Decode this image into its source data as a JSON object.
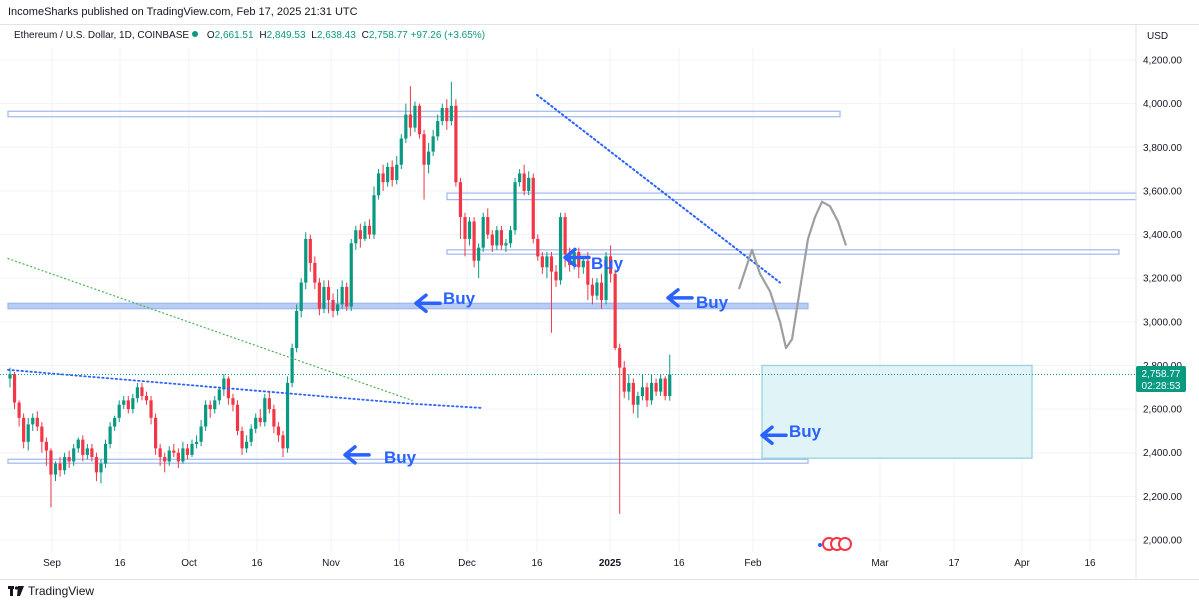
{
  "caption": "IncomeSharks published on TradingView.com, Feb 17, 2025 21:31 UTC",
  "legend": {
    "symbol": "Ethereum / U.S. Dollar, 1D, COINBASE",
    "open_key": "O",
    "open": "2,661.51",
    "high_key": "H",
    "high": "2,849.53",
    "low_key": "L",
    "low": "2,638.43",
    "close_key": "C",
    "close": "2,758.77",
    "change": "+97.26 (+3.65%)"
  },
  "currency": "USD",
  "price_tag": {
    "price": "2,758.77",
    "countdown": "02:28:53"
  },
  "footer": {
    "brand": "TradingView"
  },
  "colors": {
    "up": "#089981",
    "down": "#f23645",
    "annotation_blue": "#2962ff",
    "zone_fill": "#e0f4f7"
  },
  "chart_data": {
    "type": "candlestick",
    "title": "Ethereum / U.S. Dollar, 1D, COINBASE",
    "ylim": [
      1950,
      4250
    ],
    "y_ticks": [
      "4,200.00",
      "4,000.00",
      "3,800.00",
      "3,600.00",
      "3,400.00",
      "3,200.00",
      "3,000.00",
      "2,800.00",
      "2,600.00",
      "2,400.00",
      "2,200.00",
      "2,000.00"
    ],
    "x_ticks": [
      "Sep",
      "16",
      "Oct",
      "16",
      "Nov",
      "16",
      "Dec",
      "16",
      "2025",
      "16",
      "Feb",
      "Mar",
      "17",
      "Apr",
      "16"
    ],
    "grid": true,
    "candles": [
      {
        "o": 2740,
        "c": 2760,
        "h": 2790,
        "l": 2700
      },
      {
        "o": 2760,
        "c": 2630,
        "h": 2770,
        "l": 2600
      },
      {
        "o": 2630,
        "c": 2560,
        "h": 2640,
        "l": 2520
      },
      {
        "o": 2560,
        "c": 2450,
        "h": 2580,
        "l": 2420
      },
      {
        "o": 2450,
        "c": 2530,
        "h": 2560,
        "l": 2410
      },
      {
        "o": 2530,
        "c": 2560,
        "h": 2580,
        "l": 2500
      },
      {
        "o": 2560,
        "c": 2520,
        "h": 2590,
        "l": 2500
      },
      {
        "o": 2520,
        "c": 2450,
        "h": 2540,
        "l": 2400
      },
      {
        "o": 2450,
        "c": 2410,
        "h": 2470,
        "l": 2340
      },
      {
        "o": 2410,
        "c": 2300,
        "h": 2420,
        "l": 2150
      },
      {
        "o": 2300,
        "c": 2350,
        "h": 2360,
        "l": 2270
      },
      {
        "o": 2350,
        "c": 2320,
        "h": 2380,
        "l": 2290
      },
      {
        "o": 2320,
        "c": 2380,
        "h": 2400,
        "l": 2300
      },
      {
        "o": 2380,
        "c": 2360,
        "h": 2410,
        "l": 2330
      },
      {
        "o": 2360,
        "c": 2420,
        "h": 2440,
        "l": 2340
      },
      {
        "o": 2420,
        "c": 2460,
        "h": 2470,
        "l": 2400
      },
      {
        "o": 2460,
        "c": 2390,
        "h": 2480,
        "l": 2360
      },
      {
        "o": 2390,
        "c": 2420,
        "h": 2440,
        "l": 2370
      },
      {
        "o": 2420,
        "c": 2380,
        "h": 2440,
        "l": 2360
      },
      {
        "o": 2380,
        "c": 2310,
        "h": 2400,
        "l": 2270
      },
      {
        "o": 2310,
        "c": 2350,
        "h": 2370,
        "l": 2260
      },
      {
        "o": 2350,
        "c": 2440,
        "h": 2460,
        "l": 2330
      },
      {
        "o": 2440,
        "c": 2520,
        "h": 2540,
        "l": 2420
      },
      {
        "o": 2520,
        "c": 2560,
        "h": 2570,
        "l": 2500
      },
      {
        "o": 2560,
        "c": 2620,
        "h": 2640,
        "l": 2540
      },
      {
        "o": 2620,
        "c": 2640,
        "h": 2660,
        "l": 2600
      },
      {
        "o": 2640,
        "c": 2600,
        "h": 2660,
        "l": 2580
      },
      {
        "o": 2600,
        "c": 2650,
        "h": 2670,
        "l": 2580
      },
      {
        "o": 2650,
        "c": 2700,
        "h": 2720,
        "l": 2630
      },
      {
        "o": 2700,
        "c": 2660,
        "h": 2720,
        "l": 2640
      },
      {
        "o": 2660,
        "c": 2640,
        "h": 2680,
        "l": 2620
      },
      {
        "o": 2640,
        "c": 2560,
        "h": 2660,
        "l": 2530
      },
      {
        "o": 2560,
        "c": 2420,
        "h": 2580,
        "l": 2390
      },
      {
        "o": 2420,
        "c": 2380,
        "h": 2440,
        "l": 2340
      },
      {
        "o": 2380,
        "c": 2360,
        "h": 2400,
        "l": 2310
      },
      {
        "o": 2360,
        "c": 2410,
        "h": 2430,
        "l": 2340
      },
      {
        "o": 2410,
        "c": 2400,
        "h": 2440,
        "l": 2380
      },
      {
        "o": 2400,
        "c": 2360,
        "h": 2420,
        "l": 2330
      },
      {
        "o": 2360,
        "c": 2420,
        "h": 2450,
        "l": 2350
      },
      {
        "o": 2420,
        "c": 2390,
        "h": 2440,
        "l": 2370
      },
      {
        "o": 2390,
        "c": 2440,
        "h": 2460,
        "l": 2380
      },
      {
        "o": 2440,
        "c": 2450,
        "h": 2480,
        "l": 2420
      },
      {
        "o": 2450,
        "c": 2520,
        "h": 2550,
        "l": 2430
      },
      {
        "o": 2520,
        "c": 2620,
        "h": 2640,
        "l": 2500
      },
      {
        "o": 2620,
        "c": 2600,
        "h": 2640,
        "l": 2560
      },
      {
        "o": 2600,
        "c": 2640,
        "h": 2660,
        "l": 2580
      },
      {
        "o": 2640,
        "c": 2690,
        "h": 2700,
        "l": 2620
      },
      {
        "o": 2690,
        "c": 2740,
        "h": 2760,
        "l": 2660
      },
      {
        "o": 2740,
        "c": 2650,
        "h": 2750,
        "l": 2620
      },
      {
        "o": 2650,
        "c": 2620,
        "h": 2670,
        "l": 2590
      },
      {
        "o": 2620,
        "c": 2500,
        "h": 2640,
        "l": 2480
      },
      {
        "o": 2500,
        "c": 2420,
        "h": 2520,
        "l": 2390
      },
      {
        "o": 2420,
        "c": 2450,
        "h": 2480,
        "l": 2400
      },
      {
        "o": 2450,
        "c": 2510,
        "h": 2530,
        "l": 2430
      },
      {
        "o": 2510,
        "c": 2560,
        "h": 2580,
        "l": 2490
      },
      {
        "o": 2560,
        "c": 2540,
        "h": 2600,
        "l": 2520
      },
      {
        "o": 2540,
        "c": 2650,
        "h": 2670,
        "l": 2520
      },
      {
        "o": 2650,
        "c": 2600,
        "h": 2680,
        "l": 2580
      },
      {
        "o": 2600,
        "c": 2520,
        "h": 2620,
        "l": 2490
      },
      {
        "o": 2520,
        "c": 2480,
        "h": 2540,
        "l": 2450
      },
      {
        "o": 2480,
        "c": 2420,
        "h": 2500,
        "l": 2380
      },
      {
        "o": 2420,
        "c": 2720,
        "h": 2750,
        "l": 2400
      },
      {
        "o": 2720,
        "c": 2880,
        "h": 2900,
        "l": 2700
      },
      {
        "o": 2880,
        "c": 3050,
        "h": 3080,
        "l": 2860
      },
      {
        "o": 3050,
        "c": 3180,
        "h": 3200,
        "l": 3020
      },
      {
        "o": 3180,
        "c": 3380,
        "h": 3410,
        "l": 3150
      },
      {
        "o": 3380,
        "c": 3270,
        "h": 3400,
        "l": 3230
      },
      {
        "o": 3270,
        "c": 3180,
        "h": 3300,
        "l": 3150
      },
      {
        "o": 3180,
        "c": 3060,
        "h": 3200,
        "l": 3030
      },
      {
        "o": 3060,
        "c": 3160,
        "h": 3190,
        "l": 3040
      },
      {
        "o": 3160,
        "c": 3100,
        "h": 3190,
        "l": 3040
      },
      {
        "o": 3100,
        "c": 3050,
        "h": 3130,
        "l": 3020
      },
      {
        "o": 3050,
        "c": 3080,
        "h": 3150,
        "l": 3030
      },
      {
        "o": 3080,
        "c": 3160,
        "h": 3190,
        "l": 3060
      },
      {
        "o": 3160,
        "c": 3070,
        "h": 3180,
        "l": 3050
      },
      {
        "o": 3070,
        "c": 3360,
        "h": 3380,
        "l": 3050
      },
      {
        "o": 3360,
        "c": 3420,
        "h": 3440,
        "l": 3330
      },
      {
        "o": 3420,
        "c": 3380,
        "h": 3450,
        "l": 3340
      },
      {
        "o": 3380,
        "c": 3440,
        "h": 3460,
        "l": 3370
      },
      {
        "o": 3440,
        "c": 3400,
        "h": 3470,
        "l": 3380
      },
      {
        "o": 3400,
        "c": 3580,
        "h": 3620,
        "l": 3380
      },
      {
        "o": 3580,
        "c": 3680,
        "h": 3700,
        "l": 3560
      },
      {
        "o": 3680,
        "c": 3640,
        "h": 3720,
        "l": 3600
      },
      {
        "o": 3640,
        "c": 3710,
        "h": 3730,
        "l": 3620
      },
      {
        "o": 3710,
        "c": 3650,
        "h": 3740,
        "l": 3620
      },
      {
        "o": 3650,
        "c": 3720,
        "h": 3760,
        "l": 3630
      },
      {
        "o": 3720,
        "c": 3840,
        "h": 3860,
        "l": 3700
      },
      {
        "o": 3840,
        "c": 3950,
        "h": 4000,
        "l": 3820
      },
      {
        "o": 3950,
        "c": 3890,
        "h": 4080,
        "l": 3850
      },
      {
        "o": 3890,
        "c": 3990,
        "h": 4010,
        "l": 3870
      },
      {
        "o": 3990,
        "c": 3860,
        "h": 4000,
        "l": 3840
      },
      {
        "o": 3860,
        "c": 3720,
        "h": 3880,
        "l": 3560
      },
      {
        "o": 3720,
        "c": 3780,
        "h": 3820,
        "l": 3680
      },
      {
        "o": 3780,
        "c": 3850,
        "h": 3880,
        "l": 3760
      },
      {
        "o": 3850,
        "c": 3920,
        "h": 3950,
        "l": 3830
      },
      {
        "o": 3920,
        "c": 3980,
        "h": 4000,
        "l": 3900
      },
      {
        "o": 3980,
        "c": 3920,
        "h": 4020,
        "l": 3880
      },
      {
        "o": 3920,
        "c": 3990,
        "h": 4100,
        "l": 3900
      },
      {
        "o": 3990,
        "c": 3640,
        "h": 4020,
        "l": 3620
      },
      {
        "o": 3640,
        "c": 3480,
        "h": 3660,
        "l": 3380
      },
      {
        "o": 3480,
        "c": 3380,
        "h": 3500,
        "l": 3300
      },
      {
        "o": 3380,
        "c": 3460,
        "h": 3480,
        "l": 3350
      },
      {
        "o": 3460,
        "c": 3280,
        "h": 3480,
        "l": 3250
      },
      {
        "o": 3280,
        "c": 3340,
        "h": 3360,
        "l": 3200
      },
      {
        "o": 3340,
        "c": 3480,
        "h": 3500,
        "l": 3320
      },
      {
        "o": 3480,
        "c": 3400,
        "h": 3520,
        "l": 3380
      },
      {
        "o": 3400,
        "c": 3350,
        "h": 3420,
        "l": 3320
      },
      {
        "o": 3350,
        "c": 3420,
        "h": 3440,
        "l": 3330
      },
      {
        "o": 3420,
        "c": 3350,
        "h": 3440,
        "l": 3330
      },
      {
        "o": 3350,
        "c": 3360,
        "h": 3380,
        "l": 3320
      },
      {
        "o": 3360,
        "c": 3420,
        "h": 3440,
        "l": 3340
      },
      {
        "o": 3420,
        "c": 3640,
        "h": 3660,
        "l": 3400
      },
      {
        "o": 3640,
        "c": 3680,
        "h": 3700,
        "l": 3620
      },
      {
        "o": 3680,
        "c": 3600,
        "h": 3720,
        "l": 3580
      },
      {
        "o": 3600,
        "c": 3660,
        "h": 3690,
        "l": 3580
      },
      {
        "o": 3660,
        "c": 3380,
        "h": 3680,
        "l": 3360
      },
      {
        "o": 3380,
        "c": 3300,
        "h": 3400,
        "l": 3280
      },
      {
        "o": 3300,
        "c": 3250,
        "h": 3320,
        "l": 3220
      },
      {
        "o": 3250,
        "c": 3300,
        "h": 3320,
        "l": 3200
      },
      {
        "o": 3300,
        "c": 3230,
        "h": 3320,
        "l": 2950
      },
      {
        "o": 3230,
        "c": 3190,
        "h": 3260,
        "l": 3160
      },
      {
        "o": 3190,
        "c": 3480,
        "h": 3500,
        "l": 3170
      },
      {
        "o": 3480,
        "c": 3310,
        "h": 3500,
        "l": 3250
      },
      {
        "o": 3310,
        "c": 3260,
        "h": 3340,
        "l": 3230
      },
      {
        "o": 3260,
        "c": 3320,
        "h": 3340,
        "l": 3240
      },
      {
        "o": 3320,
        "c": 3250,
        "h": 3340,
        "l": 3200
      },
      {
        "o": 3250,
        "c": 3280,
        "h": 3300,
        "l": 3220
      },
      {
        "o": 3280,
        "c": 3170,
        "h": 3320,
        "l": 3100
      },
      {
        "o": 3170,
        "c": 3120,
        "h": 3200,
        "l": 3080
      },
      {
        "o": 3120,
        "c": 3180,
        "h": 3200,
        "l": 3100
      },
      {
        "o": 3180,
        "c": 3100,
        "h": 3220,
        "l": 3060
      },
      {
        "o": 3100,
        "c": 3300,
        "h": 3320,
        "l": 3080
      },
      {
        "o": 3300,
        "c": 3220,
        "h": 3350,
        "l": 3180
      },
      {
        "o": 3220,
        "c": 2880,
        "h": 3240,
        "l": 2870
      },
      {
        "o": 2880,
        "c": 2790,
        "h": 2900,
        "l": 2120
      },
      {
        "o": 2790,
        "c": 2680,
        "h": 2820,
        "l": 2650
      },
      {
        "o": 2680,
        "c": 2720,
        "h": 2760,
        "l": 2640
      },
      {
        "o": 2720,
        "c": 2620,
        "h": 2740,
        "l": 2580
      },
      {
        "o": 2620,
        "c": 2660,
        "h": 2680,
        "l": 2560
      },
      {
        "o": 2660,
        "c": 2700,
        "h": 2760,
        "l": 2640
      },
      {
        "o": 2700,
        "c": 2640,
        "h": 2720,
        "l": 2610
      },
      {
        "o": 2640,
        "c": 2720,
        "h": 2760,
        "l": 2620
      },
      {
        "o": 2720,
        "c": 2680,
        "h": 2740,
        "l": 2660
      },
      {
        "o": 2680,
        "c": 2740,
        "h": 2760,
        "l": 2660
      },
      {
        "o": 2740,
        "c": 2660,
        "h": 2750,
        "l": 2640
      },
      {
        "o": 2660,
        "c": 2758.77,
        "h": 2849.53,
        "l": 2638.43
      }
    ],
    "annotations": [
      {
        "type": "label",
        "text": "Buy",
        "date_index": 79,
        "price": 3110
      },
      {
        "type": "label",
        "text": "Buy",
        "date_index": 117,
        "price": 3270
      },
      {
        "type": "label",
        "text": "Buy",
        "date_index": 135,
        "price": 3090
      },
      {
        "type": "label",
        "text": "Buy",
        "date_index": 62,
        "price": 2390
      },
      {
        "type": "label",
        "text": "Buy",
        "date_index": 163,
        "price": 2500
      }
    ]
  }
}
